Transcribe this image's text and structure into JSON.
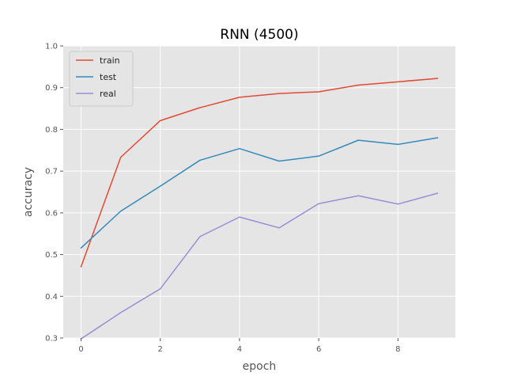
{
  "chart_data": {
    "type": "line",
    "title": "RNN (4500)",
    "xlabel": "epoch",
    "ylabel": "accuracy",
    "x": [
      0,
      1,
      2,
      3,
      4,
      5,
      6,
      7,
      8,
      9
    ],
    "xlim": [
      -0.45,
      9.45
    ],
    "ylim": [
      0.3,
      1.0
    ],
    "xticks": [
      0,
      2,
      4,
      6,
      8
    ],
    "xtick_labels": [
      "0",
      "2",
      "4",
      "6",
      "8"
    ],
    "yticks": [
      0.3,
      0.4,
      0.5,
      0.6,
      0.7,
      0.8,
      0.9,
      1.0
    ],
    "ytick_labels": [
      "0.3",
      "0.4",
      "0.5",
      "0.6",
      "0.7",
      "0.8",
      "0.9",
      "1.0"
    ],
    "grid": true,
    "legend_position": "top-left",
    "series": [
      {
        "name": "train",
        "color": "#E24A33",
        "values": [
          0.471,
          0.733,
          0.821,
          0.852,
          0.877,
          0.886,
          0.89,
          0.906,
          0.914,
          0.922
        ]
      },
      {
        "name": "test",
        "color": "#348ABD",
        "values": [
          0.516,
          0.604,
          0.664,
          0.726,
          0.754,
          0.724,
          0.736,
          0.774,
          0.764,
          0.78
        ]
      },
      {
        "name": "real",
        "color": "#988ED5",
        "values": [
          0.298,
          0.361,
          0.418,
          0.543,
          0.59,
          0.564,
          0.622,
          0.641,
          0.621,
          0.647
        ]
      }
    ]
  },
  "style": {
    "plot_background": "#E5E5E5",
    "grid_color": "#FFFFFF",
    "legend_background": "#E5E5E5",
    "legend_border": "#CCCCCC"
  }
}
